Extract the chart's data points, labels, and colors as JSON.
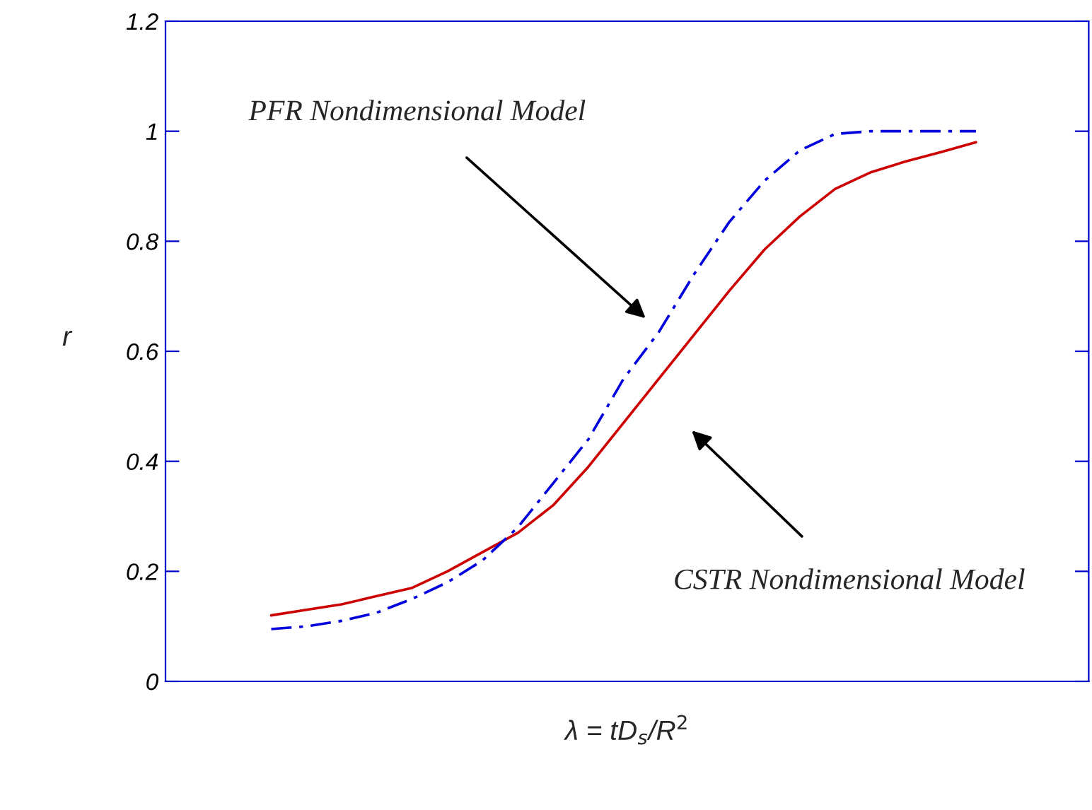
{
  "chart_data": {
    "type": "line",
    "xlabel": "λ = tD$_{s}$/R$^{2}$",
    "ylabel": "r",
    "categories": [
      null,
      null,
      null,
      null,
      null,
      null,
      null,
      null,
      null,
      null,
      null,
      null,
      null,
      null,
      null,
      null,
      null,
      null,
      null,
      null,
      null
    ],
    "series": [
      {
        "color": "#cc0000",
        "line_style": "solid",
        "values": [
          0.12,
          0.13,
          0.14,
          0.155,
          0.17,
          0.2,
          0.235,
          0.27,
          0.32,
          0.39,
          0.47,
          0.55,
          0.63,
          0.71,
          0.785,
          0.845,
          0.895,
          0.925,
          0.945,
          0.962,
          0.98
        ]
      },
      {
        "color": "#0000dd",
        "line_style": "dashed",
        "values": [
          0.095,
          0.1,
          0.11,
          0.125,
          0.15,
          0.18,
          0.22,
          0.28,
          0.36,
          0.44,
          0.55,
          0.635,
          0.74,
          0.835,
          0.91,
          0.965,
          0.995,
          1.0,
          1.0,
          1.0,
          1.0
        ]
      }
    ],
    "ylim": [
      0,
      1.2
    ],
    "yticks": [
      0,
      0.2,
      0.4,
      0.6,
      0.8,
      1,
      1.2
    ],
    "annotations": [
      "PFR Nondimensional Model",
      "CSTR Nondimensional Model"
    ],
    "grid": false,
    "legend": false,
    "marker": "none"
  }
}
